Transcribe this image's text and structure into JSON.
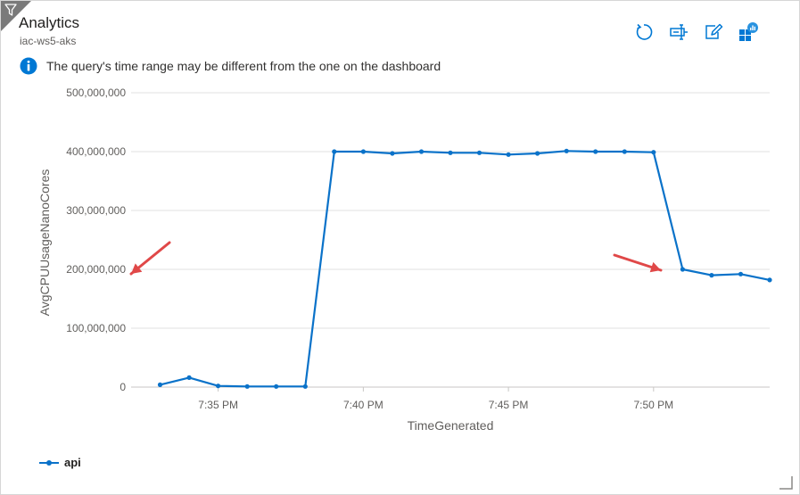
{
  "tile": {
    "title": "Analytics",
    "subtitle": "iac-ws5-aks",
    "info_message": "The query's time range may be different from the one on the dashboard",
    "toolbar": [
      {
        "name": "refresh-icon",
        "icon": "refresh"
      },
      {
        "name": "open-in-logs-icon",
        "icon": "logs"
      },
      {
        "name": "edit-query-icon",
        "icon": "edit"
      },
      {
        "name": "pin-to-dashboard-icon",
        "icon": "pin"
      }
    ]
  },
  "colors": {
    "series": "#0a72c9",
    "accent": "#0078d4",
    "annotation_arrow": "#e04848",
    "gridline": "#e1e1e1"
  },
  "chart_data": {
    "type": "line",
    "xlabel": "TimeGenerated",
    "ylabel": "AvgCPUUsageNanoCores",
    "ylim": [
      0,
      500000000
    ],
    "y_ticks": [
      0,
      100000000,
      200000000,
      300000000,
      400000000,
      500000000
    ],
    "y_tick_labels": [
      "0",
      "100,000,000",
      "200,000,000",
      "300,000,000",
      "400,000,000",
      "500,000,000"
    ],
    "x_range": [
      "7:32 PM",
      "7:54 PM"
    ],
    "x_ticks": [
      "7:35 PM",
      "7:40 PM",
      "7:45 PM",
      "7:50 PM"
    ],
    "grid": true,
    "legend_position": "bottom-left",
    "series": [
      {
        "name": "api",
        "x": [
          "7:33 PM",
          "7:34 PM",
          "7:35 PM",
          "7:36 PM",
          "7:37 PM",
          "7:38 PM",
          "7:39 PM",
          "7:40 PM",
          "7:41 PM",
          "7:42 PM",
          "7:43 PM",
          "7:44 PM",
          "7:45 PM",
          "7:46 PM",
          "7:47 PM",
          "7:48 PM",
          "7:49 PM",
          "7:50 PM",
          "7:51 PM",
          "7:52 PM",
          "7:53 PM",
          "7:54 PM"
        ],
        "values": [
          4000000,
          16000000,
          2000000,
          1000000,
          1000000,
          1000000,
          400000000,
          400000000,
          397000000,
          400000000,
          398000000,
          398000000,
          395000000,
          397000000,
          401000000,
          400000000,
          400000000,
          399000000,
          200000000,
          190000000,
          192000000,
          182000000
        ]
      }
    ],
    "annotations": [
      {
        "type": "arrow",
        "points_to": "y-axis 200,000,000 label"
      },
      {
        "type": "arrow",
        "points_to": "data point at 7:51 PM"
      }
    ]
  }
}
